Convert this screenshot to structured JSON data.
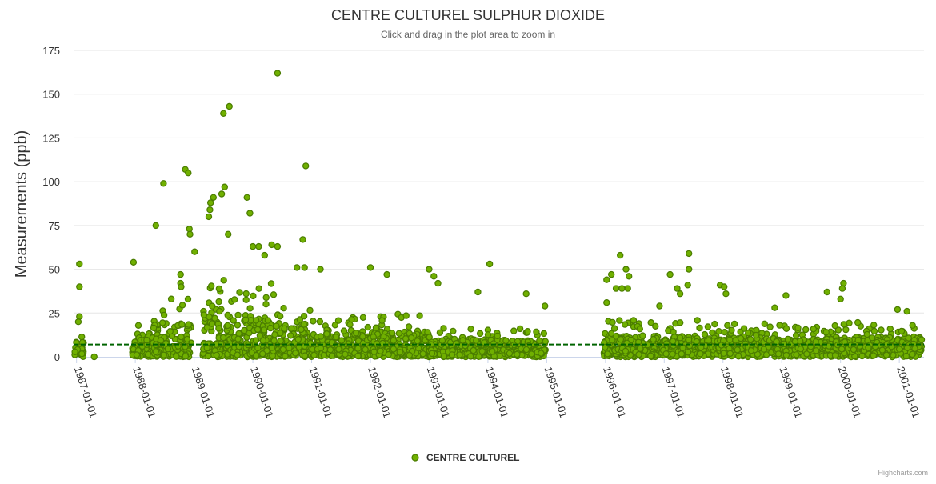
{
  "chart_data": {
    "type": "scatter",
    "title": "CENTRE CULTUREL SULPHUR DIOXIDE",
    "subtitle": "Click and drag in the plot area to zoom in",
    "ylabel": "Measurements (ppb)",
    "xlabel": "",
    "ylim": [
      0,
      175
    ],
    "yticks": [
      0,
      25,
      50,
      75,
      100,
      125,
      150,
      175
    ],
    "xrange": [
      1986.95,
      2001.42
    ],
    "xticks": [
      {
        "label": "1987-01-01",
        "value": 1987.0
      },
      {
        "label": "1988-01-01",
        "value": 1988.0
      },
      {
        "label": "1989-01-01",
        "value": 1989.0
      },
      {
        "label": "1990-01-01",
        "value": 1990.0
      },
      {
        "label": "1991-01-01",
        "value": 1991.0
      },
      {
        "label": "1992-01-01",
        "value": 1992.0
      },
      {
        "label": "1993-01-01",
        "value": 1993.0
      },
      {
        "label": "1994-01-01",
        "value": 1994.0
      },
      {
        "label": "1995-01-01",
        "value": 1995.0
      },
      {
        "label": "1996-01-01",
        "value": 1996.0
      },
      {
        "label": "1997-01-01",
        "value": 1997.0
      },
      {
        "label": "1998-01-01",
        "value": 1998.0
      },
      {
        "label": "1999-01-01",
        "value": 1999.0
      },
      {
        "label": "2000-01-01",
        "value": 2000.0
      },
      {
        "label": "2001-01-01",
        "value": 2001.0
      }
    ],
    "reference_line": {
      "value": 7,
      "color": "#006400",
      "style": "dashed"
    },
    "series": [
      {
        "name": "CENTRE CULTUREL",
        "color": "#70b000",
        "border_color": "#4a7c00",
        "highlight_points": [
          {
            "x": 1987.05,
            "y": 53
          },
          {
            "x": 1987.05,
            "y": 40
          },
          {
            "x": 1987.05,
            "y": 23
          },
          {
            "x": 1987.03,
            "y": 20
          },
          {
            "x": 1987.3,
            "y": 0
          },
          {
            "x": 1987.97,
            "y": 54
          },
          {
            "x": 1988.35,
            "y": 75
          },
          {
            "x": 1988.48,
            "y": 99
          },
          {
            "x": 1988.85,
            "y": 107
          },
          {
            "x": 1988.9,
            "y": 105
          },
          {
            "x": 1988.92,
            "y": 73
          },
          {
            "x": 1988.93,
            "y": 70
          },
          {
            "x": 1988.77,
            "y": 47
          },
          {
            "x": 1988.77,
            "y": 42
          },
          {
            "x": 1988.78,
            "y": 40
          },
          {
            "x": 1989.01,
            "y": 60
          },
          {
            "x": 1989.5,
            "y": 139
          },
          {
            "x": 1989.6,
            "y": 143
          },
          {
            "x": 1989.52,
            "y": 97
          },
          {
            "x": 1989.47,
            "y": 93
          },
          {
            "x": 1989.33,
            "y": 91
          },
          {
            "x": 1989.28,
            "y": 88
          },
          {
            "x": 1989.27,
            "y": 84
          },
          {
            "x": 1989.25,
            "y": 80
          },
          {
            "x": 1989.58,
            "y": 70
          },
          {
            "x": 1989.9,
            "y": 91
          },
          {
            "x": 1989.95,
            "y": 82
          },
          {
            "x": 1990.0,
            "y": 63
          },
          {
            "x": 1990.1,
            "y": 63
          },
          {
            "x": 1990.2,
            "y": 58
          },
          {
            "x": 1990.32,
            "y": 64
          },
          {
            "x": 1990.42,
            "y": 63
          },
          {
            "x": 1990.42,
            "y": 162
          },
          {
            "x": 1990.9,
            "y": 109
          },
          {
            "x": 1990.85,
            "y": 67
          },
          {
            "x": 1990.75,
            "y": 51
          },
          {
            "x": 1990.88,
            "y": 51
          },
          {
            "x": 1991.15,
            "y": 50
          },
          {
            "x": 1992.0,
            "y": 51
          },
          {
            "x": 1992.28,
            "y": 47
          },
          {
            "x": 1993.0,
            "y": 50
          },
          {
            "x": 1993.08,
            "y": 46
          },
          {
            "x": 1993.15,
            "y": 42
          },
          {
            "x": 1993.83,
            "y": 37
          },
          {
            "x": 1994.03,
            "y": 53
          },
          {
            "x": 1994.65,
            "y": 36
          },
          {
            "x": 1994.97,
            "y": 29
          },
          {
            "x": 1996.02,
            "y": 44
          },
          {
            "x": 1996.02,
            "y": 31
          },
          {
            "x": 1996.1,
            "y": 47
          },
          {
            "x": 1996.25,
            "y": 58
          },
          {
            "x": 1996.35,
            "y": 50
          },
          {
            "x": 1996.4,
            "y": 46
          },
          {
            "x": 1996.18,
            "y": 39
          },
          {
            "x": 1996.28,
            "y": 39
          },
          {
            "x": 1996.38,
            "y": 39
          },
          {
            "x": 1996.92,
            "y": 29
          },
          {
            "x": 1997.1,
            "y": 47
          },
          {
            "x": 1997.42,
            "y": 59
          },
          {
            "x": 1997.42,
            "y": 50
          },
          {
            "x": 1997.4,
            "y": 41
          },
          {
            "x": 1997.27,
            "y": 36
          },
          {
            "x": 1997.22,
            "y": 39
          },
          {
            "x": 1997.95,
            "y": 41
          },
          {
            "x": 1998.02,
            "y": 40
          },
          {
            "x": 1998.05,
            "y": 36
          },
          {
            "x": 1998.88,
            "y": 28
          },
          {
            "x": 1999.07,
            "y": 35
          },
          {
            "x": 1999.77,
            "y": 37
          },
          {
            "x": 2000.05,
            "y": 42
          },
          {
            "x": 2000.03,
            "y": 39
          },
          {
            "x": 2000.0,
            "y": 33
          },
          {
            "x": 2000.97,
            "y": 27
          },
          {
            "x": 2001.13,
            "y": 26
          }
        ],
        "segments": [
          {
            "start": 1986.97,
            "end": 1987.12,
            "base": 4,
            "spread": 15
          },
          {
            "start": 1987.95,
            "end": 1988.3,
            "base": 5,
            "spread": 18
          },
          {
            "start": 1988.3,
            "end": 1988.95,
            "base": 6,
            "spread": 28
          },
          {
            "start": 1989.15,
            "end": 1989.65,
            "base": 8,
            "spread": 40
          },
          {
            "start": 1989.65,
            "end": 1990.45,
            "base": 7,
            "spread": 35
          },
          {
            "start": 1990.45,
            "end": 1991.0,
            "base": 6,
            "spread": 22
          },
          {
            "start": 1991.0,
            "end": 1992.0,
            "base": 5,
            "spread": 18
          },
          {
            "start": 1992.0,
            "end": 1993.0,
            "base": 5,
            "spread": 20
          },
          {
            "start": 1993.0,
            "end": 1994.0,
            "base": 4,
            "spread": 14
          },
          {
            "start": 1994.0,
            "end": 1994.98,
            "base": 4,
            "spread": 13
          },
          {
            "start": 1995.97,
            "end": 1996.9,
            "base": 5,
            "spread": 16
          },
          {
            "start": 1996.95,
            "end": 1997.9,
            "base": 6,
            "spread": 15
          },
          {
            "start": 1997.9,
            "end": 1998.9,
            "base": 6,
            "spread": 13
          },
          {
            "start": 1998.9,
            "end": 1999.9,
            "base": 6,
            "spread": 12
          },
          {
            "start": 1999.9,
            "end": 2001.38,
            "base": 7,
            "spread": 13
          }
        ]
      }
    ],
    "legend": {
      "position": "bottom-center",
      "label": "CENTRE CULTUREL"
    }
  },
  "credits": "Highcharts.com"
}
